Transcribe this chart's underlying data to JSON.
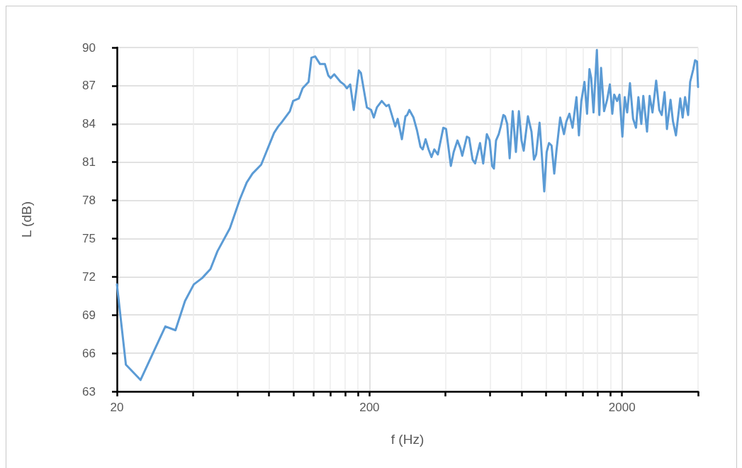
{
  "chart_data": {
    "type": "line",
    "xlabel": "f (Hz)",
    "ylabel": "L (dB)",
    "color": "#5b9bd5",
    "log": "x",
    "grid": true,
    "xlim": [
      20,
      4000
    ],
    "ylim": [
      63,
      90
    ],
    "xticks": [
      20,
      {
        "value": 40,
        "label": null
      },
      {
        "value": 60,
        "label": null
      },
      {
        "value": 80,
        "label": null
      },
      {
        "value": 100,
        "label": null
      },
      {
        "value": 120,
        "label": null
      },
      {
        "value": 140,
        "label": null
      },
      {
        "value": 160,
        "label": null
      },
      {
        "value": 180,
        "label": null
      },
      200,
      {
        "value": 400,
        "label": null
      },
      {
        "value": 600,
        "label": null
      },
      {
        "value": 800,
        "label": null
      },
      {
        "value": 1000,
        "label": null
      },
      {
        "value": 1200,
        "label": null
      },
      {
        "value": 1400,
        "label": null
      },
      {
        "value": 1600,
        "label": null
      },
      {
        "value": 1800,
        "label": null
      },
      2000,
      {
        "value": 4000,
        "label": null
      }
    ],
    "yticks": [
      63,
      66,
      69,
      72,
      75,
      78,
      81,
      84,
      87,
      90
    ],
    "x": [
      20,
      21.7,
      24.8,
      31.1,
      34.1,
      37.2,
      40.3,
      43.5,
      46.9,
      50,
      56,
      61.4,
      65.3,
      68.8,
      74.5,
      83.8,
      87,
      90.4,
      96.8,
      99.7,
      105,
      108.7,
      114.8,
      117.8,
      121.9,
      127.4,
      133.2,
      137.4,
      140.4,
      145,
      153.6,
      158.5,
      162.8,
      167.8,
      173.3,
      181.5,
      185,
      195.3,
      203,
      208,
      214,
      223.7,
      233,
      238.6,
      253,
      258.6,
      268.8,
      277.6,
      282,
      287.6,
      298.8,
      308.4,
      318.4,
      325,
      333.6,
      342.8,
      352,
      361,
      373,
      392,
      402,
      420,
      431,
      446,
      458,
      466,
      486,
      496,
      512,
      524,
      548,
      564,
      583,
      598,
      612,
      622,
      634,
      650,
      662,
      678,
      688,
      702,
      718,
      738,
      760,
      781,
      800,
      816,
      848,
      876,
      896,
      914,
      943,
      964,
      984,
      1006,
      1028,
      1052,
      1078,
      1100,
      1138,
      1178,
      1204,
      1238,
      1274,
      1320,
      1350,
      1380,
      1420,
      1454,
      1486,
      1510,
      1542,
      1590,
      1626,
      1652,
      1698,
      1746,
      1790,
      1830,
      1862,
      1912,
      1954,
      2006,
      2050,
      2096,
      2150,
      2212,
      2272,
      2322,
      2384,
      2428,
      2512,
      2572,
      2640,
      2730,
      2808,
      2872,
      2948,
      3012,
      3112,
      3182,
      3270,
      3400,
      3476,
      3552,
      3654,
      3722,
      3830,
      3892,
      3962,
      4000
    ],
    "values": [
      71.4,
      65.1,
      63.9,
      68.1,
      67.8,
      70.1,
      71.4,
      71.9,
      72.6,
      74.0,
      75.8,
      78.1,
      79.4,
      80.1,
      80.8,
      83.3,
      83.8,
      84.2,
      85.0,
      85.8,
      86.0,
      86.8,
      87.3,
      89.2,
      89.3,
      88.7,
      88.7,
      87.8,
      87.6,
      87.9,
      87.3,
      87.1,
      86.8,
      87.1,
      85.1,
      88.2,
      88.0,
      85.3,
      85.1,
      84.5,
      85.3,
      85.8,
      85.4,
      85.5,
      83.8,
      84.4,
      82.8,
      84.6,
      84.7,
      85.1,
      84.5,
      83.5,
      82.2,
      82.0,
      82.8,
      82.0,
      81.4,
      82.0,
      81.6,
      83.7,
      83.6,
      80.7,
      81.8,
      82.7,
      82.1,
      81.5,
      83.0,
      82.9,
      81.2,
      80.9,
      82.5,
      80.9,
      83.2,
      82.7,
      80.7,
      80.5,
      82.7,
      83.2,
      83.8,
      84.7,
      84.6,
      84.0,
      81.3,
      85.0,
      81.8,
      85.0,
      82.7,
      81.9,
      84.6,
      83.4,
      81.2,
      81.6,
      84.1,
      81.4,
      78.7,
      81.8,
      82.5,
      82.3,
      80.1,
      81.9,
      84.5,
      83.2,
      84.2,
      84.8,
      83.7,
      86.1,
      83.1,
      85.8,
      87.3,
      84.8,
      88.3,
      87.6,
      84.9,
      89.8,
      84.7,
      88.4,
      85.0,
      85.9,
      87.1,
      84.8,
      86.3,
      85.8,
      86.3,
      83.0,
      86.1,
      84.9,
      87.2,
      84.4,
      83.7,
      86.1,
      84.0,
      86.2,
      83.4,
      86.2,
      84.9,
      87.4,
      85.1,
      84.7,
      86.5,
      83.6,
      85.9,
      84.2,
      83.1,
      86.0,
      84.5,
      86.1,
      84.7,
      87.3,
      88.3,
      89.0,
      88.9,
      86.9
    ]
  }
}
